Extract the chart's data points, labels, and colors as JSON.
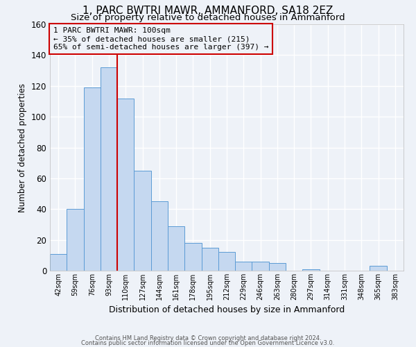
{
  "title": "1, PARC BWTRI MAWR, AMMANFORD, SA18 2EZ",
  "subtitle": "Size of property relative to detached houses in Ammanford",
  "xlabel": "Distribution of detached houses by size in Ammanford",
  "ylabel": "Number of detached properties",
  "bar_labels": [
    "42sqm",
    "59sqm",
    "76sqm",
    "93sqm",
    "110sqm",
    "127sqm",
    "144sqm",
    "161sqm",
    "178sqm",
    "195sqm",
    "212sqm",
    "229sqm",
    "246sqm",
    "263sqm",
    "280sqm",
    "297sqm",
    "314sqm",
    "331sqm",
    "348sqm",
    "365sqm",
    "383sqm"
  ],
  "bar_values": [
    11,
    40,
    119,
    132,
    112,
    65,
    45,
    29,
    18,
    15,
    12,
    6,
    6,
    5,
    0,
    1,
    0,
    0,
    0,
    3,
    0
  ],
  "bar_color": "#c5d8f0",
  "bar_edge_color": "#5b9bd5",
  "ylim": [
    0,
    160
  ],
  "yticks": [
    0,
    20,
    40,
    60,
    80,
    100,
    120,
    140,
    160
  ],
  "vline_x": 3.5,
  "vline_color": "#cc0000",
  "annotation_title": "1 PARC BWTRI MAWR: 100sqm",
  "annotation_line1": "← 35% of detached houses are smaller (215)",
  "annotation_line2": "65% of semi-detached houses are larger (397) →",
  "annotation_box_color": "#cc0000",
  "footer1": "Contains HM Land Registry data © Crown copyright and database right 2024.",
  "footer2": "Contains public sector information licensed under the Open Government Licence v3.0.",
  "background_color": "#eef2f8",
  "grid_color": "#ffffff",
  "title_fontsize": 11,
  "subtitle_fontsize": 9.5
}
